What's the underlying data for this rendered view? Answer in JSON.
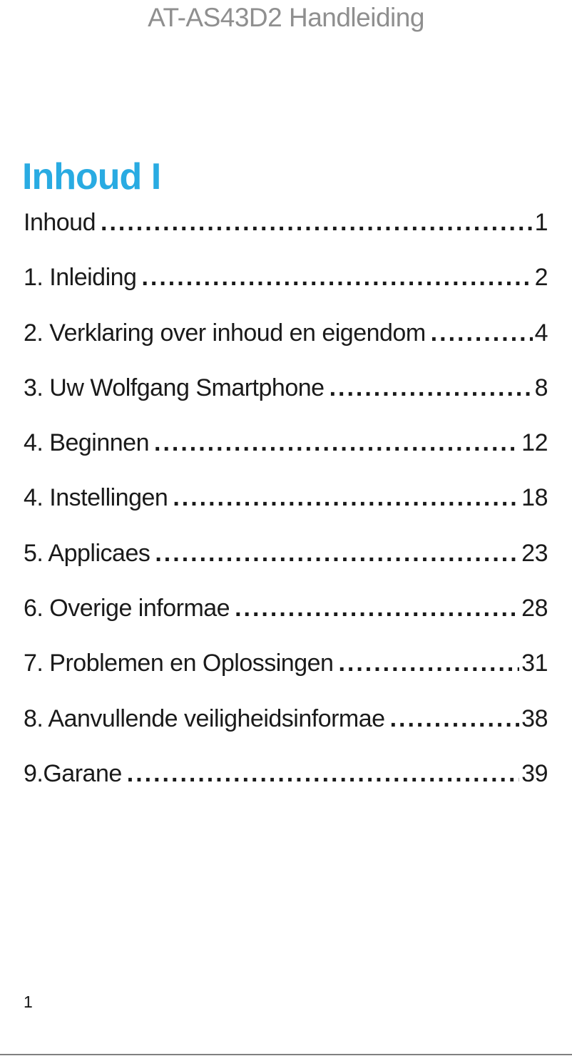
{
  "header": {
    "title": "AT-AS43D2 Handleiding"
  },
  "toc": {
    "heading": "Inhoud I",
    "entries": [
      {
        "label": "Inhoud",
        "page": "1"
      },
      {
        "label": "1. Inleiding",
        "page": "2"
      },
      {
        "label": "2. Verklaring over inhoud en eigendom",
        "page": "4"
      },
      {
        "label": "3. Uw Wolfgang Smartphone",
        "page": "8"
      },
      {
        "label": "4. Beginnen",
        "page": "12"
      },
      {
        "label": "4. Instellingen",
        "page": "18"
      },
      {
        "label": "5. Applicaes",
        "page": "23"
      },
      {
        "label": "6. Overige informae",
        "page": "28"
      },
      {
        "label": "7. Problemen en Oplossingen",
        "page": "31"
      },
      {
        "label": "8. Aanvullende veiligheidsinformae",
        "page": "38"
      },
      {
        "label": "9.Garane",
        "page": "39"
      }
    ]
  },
  "footer": {
    "page_number": "1"
  },
  "colors": {
    "heading_accent": "#29abe2",
    "header_gray": "#8f8f8f",
    "rule_gray": "#7f7f7f",
    "text_black": "#1a1a1a"
  }
}
